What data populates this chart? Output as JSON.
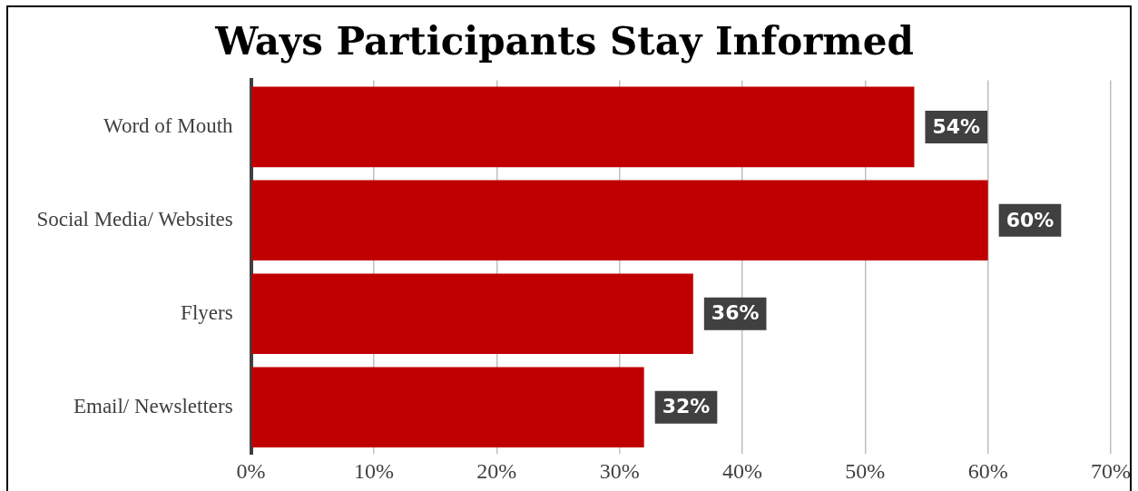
{
  "chart_data": {
    "type": "bar",
    "orientation": "horizontal",
    "title": "Ways Participants Stay Informed",
    "categories": [
      "Word of Mouth",
      "Social Media/ Websites",
      "Flyers",
      "Email/ Newsletters"
    ],
    "values": [
      54,
      60,
      36,
      32
    ],
    "value_labels": [
      "54%",
      "60%",
      "36%",
      "32%"
    ],
    "color": "#c00000",
    "xlim": [
      0,
      70
    ],
    "xticks": [
      {
        "value": 0,
        "label": "0%"
      },
      {
        "value": 10,
        "label": "10%"
      },
      {
        "value": 20,
        "label": "20%"
      },
      {
        "value": 30,
        "label": "30%"
      },
      {
        "value": 40,
        "label": "40%"
      },
      {
        "value": 50,
        "label": "50%"
      },
      {
        "value": 60,
        "label": "60%"
      },
      {
        "value": 70,
        "label": "70%"
      }
    ],
    "grid": "x"
  }
}
